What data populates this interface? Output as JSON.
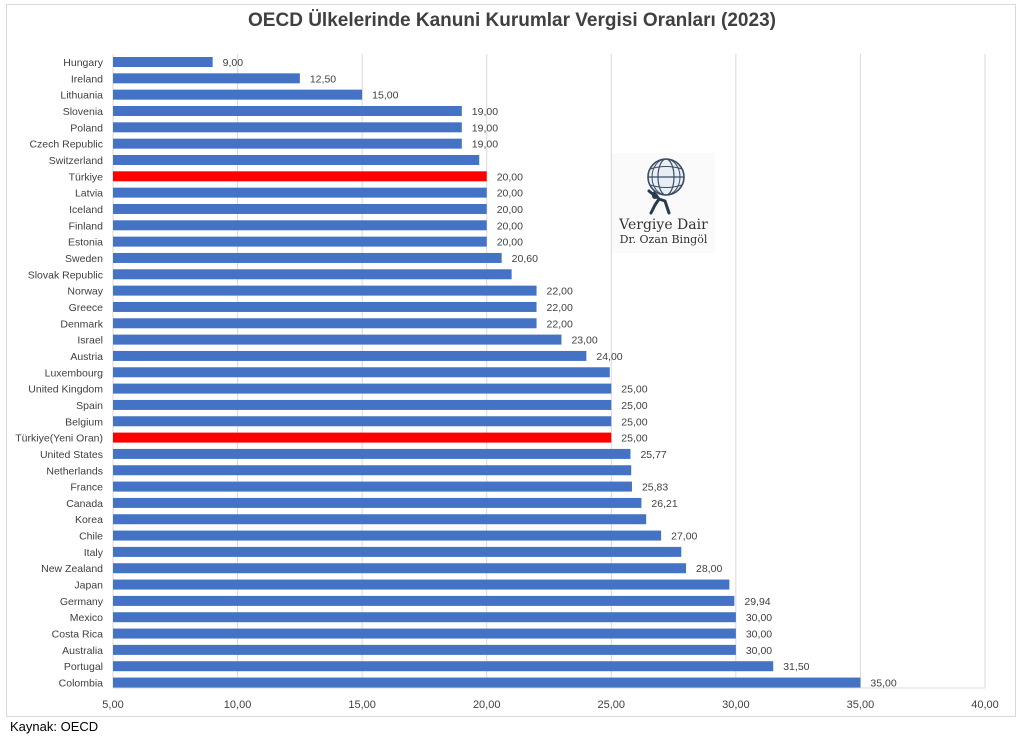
{
  "chart_data": {
    "type": "bar",
    "orientation": "horizontal",
    "title": "OECD Ülkelerinde Kanuni Kurumlar Vergisi Oranları (2023)",
    "categories": [
      "Hungary",
      "Ireland",
      "Lithuania",
      "Slovenia",
      "Poland",
      "Czech Republic",
      "Switzerland",
      "Türkiye",
      "Latvia",
      "Iceland",
      "Finland",
      "Estonia",
      "Sweden",
      "Slovak Republic",
      "Norway",
      "Greece",
      "Denmark",
      "Israel",
      "Austria",
      "Luxembourg",
      "United Kingdom",
      "Spain",
      "Belgium",
      "Türkiye(Yeni Oran)",
      "United States",
      "Netherlands",
      "France",
      "Canada",
      "Korea",
      "Chile",
      "Italy",
      "New Zealand",
      "Japan",
      "Germany",
      "Mexico",
      "Costa Rica",
      "Australia",
      "Portugal",
      "Colombia"
    ],
    "values": [
      9.0,
      12.5,
      15.0,
      19.0,
      19.0,
      19.0,
      19.7,
      20.0,
      20.0,
      20.0,
      20.0,
      20.0,
      20.6,
      21.0,
      22.0,
      22.0,
      22.0,
      23.0,
      24.0,
      24.94,
      25.0,
      25.0,
      25.0,
      25.0,
      25.77,
      25.8,
      25.83,
      26.21,
      26.4,
      27.0,
      27.81,
      28.0,
      29.74,
      29.94,
      30.0,
      30.0,
      30.0,
      31.5,
      35.0
    ],
    "value_labels": [
      "9,00",
      "12,50",
      "15,00",
      "19,00",
      "19,00",
      "19,00",
      "",
      "20,00",
      "20,00",
      "20,00",
      "20,00",
      "20,00",
      "20,60",
      "",
      "22,00",
      "22,00",
      "22,00",
      "23,00",
      "24,00",
      "",
      "25,00",
      "25,00",
      "25,00",
      "25,00",
      "25,77",
      "",
      "25,83",
      "26,21",
      "",
      "27,00",
      "",
      "28,00",
      "",
      "29,94",
      "30,00",
      "30,00",
      "30,00",
      "31,50",
      "35,00"
    ],
    "highlighted": [
      "Türkiye",
      "Türkiye(Yeni Oran)"
    ],
    "xlim": [
      5,
      40
    ],
    "xticks": [
      "5,00",
      "10,00",
      "15,00",
      "20,00",
      "25,00",
      "30,00",
      "35,00",
      "40,00"
    ],
    "grid": true,
    "colors": {
      "bar": "#4472c4",
      "highlight": "#ff0000",
      "grid": "#d9d9d9"
    }
  },
  "logo": {
    "line1": "Vergiye Dair",
    "line2": "Dr. Ozan Bingöl",
    "icon": "globe-atlas-icon"
  },
  "source_note": "Kaynak: OECD"
}
